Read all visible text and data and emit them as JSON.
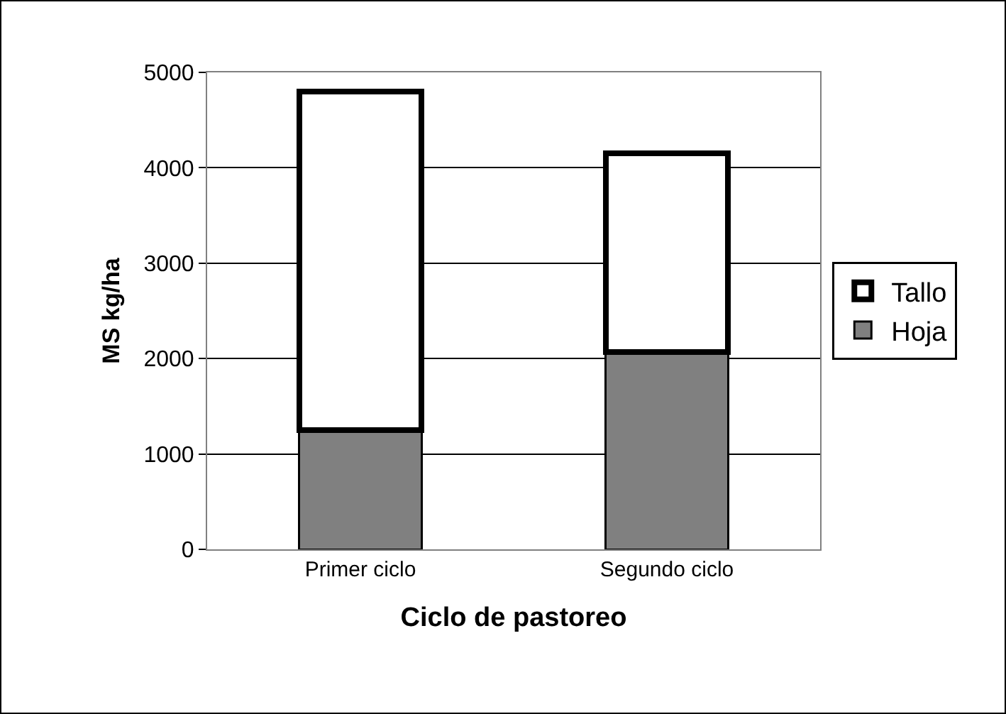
{
  "chart_data": {
    "type": "bar",
    "stacked": true,
    "xlabel": "Ciclo de pastoreo",
    "ylabel": "MS kg/ha",
    "categories": [
      "Primer ciclo",
      "Segundo ciclo"
    ],
    "series": [
      {
        "name": "Hoja",
        "color": "#808080",
        "values": [
          1250,
          2070
        ]
      },
      {
        "name": "Tallo",
        "color": "#ffffff",
        "values": [
          3550,
          2080
        ]
      }
    ],
    "ylim": [
      0,
      5000
    ],
    "yticks": [
      0,
      1000,
      2000,
      3000,
      4000,
      5000
    ],
    "grid": "y",
    "legend": "right"
  }
}
